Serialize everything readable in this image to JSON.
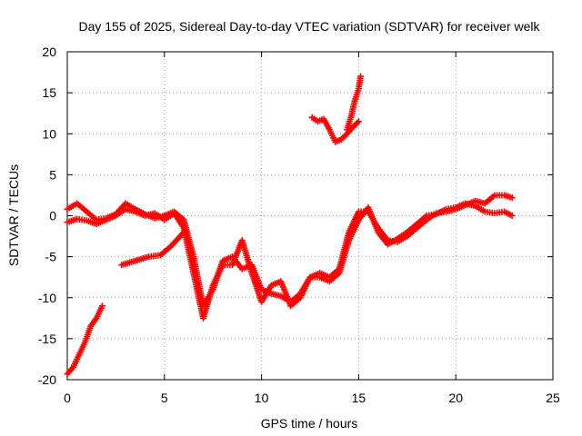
{
  "chart_data": {
    "type": "scatter",
    "title": "Day 155 of 2025, Sidereal Day-to-day VTEC variation (SDTVAR) for receiver welk",
    "xlabel": "GPS time / hours",
    "ylabel": "SDTVAR / TECUs",
    "xlim": [
      0,
      25
    ],
    "ylim": [
      -20,
      20
    ],
    "xticks": [
      "0",
      "5",
      "10",
      "15",
      "20",
      "25"
    ],
    "yticks": [
      "-20",
      "-15",
      "-10",
      "-5",
      "0",
      "5",
      "10",
      "15",
      "20"
    ],
    "grid": true,
    "legend": "none",
    "marker": "plus",
    "color": "#ff0000",
    "series": [
      {
        "x": [
          0.0,
          0.5,
          1.0,
          1.5,
          2.0,
          2.5,
          3.0,
          3.5,
          4.0,
          4.5,
          5.0,
          5.5,
          6.0,
          6.5,
          7.0,
          7.5,
          8.0,
          8.5,
          9.0,
          9.5,
          10.0,
          10.5,
          11.0,
          11.5,
          12.0,
          12.5,
          13.0,
          13.5,
          14.0,
          14.5,
          15.0,
          15.5,
          16.0,
          16.5,
          17.0,
          17.5,
          18.0,
          18.5,
          19.0,
          19.5,
          20.0,
          20.5,
          21.0,
          21.5,
          22.0,
          22.5,
          22.9
        ],
        "y": [
          0.8,
          1.5,
          0.5,
          -0.5,
          -0.3,
          0.2,
          1.5,
          0.8,
          0.2,
          -0.3,
          0.0,
          0.5,
          -0.5,
          -5.0,
          -11.0,
          -9.0,
          -5.5,
          -5.0,
          -6.5,
          -6.0,
          -9.0,
          -9.5,
          -9.8,
          -10.5,
          -9.5,
          -7.5,
          -7.0,
          -7.5,
          -6.5,
          -2.0,
          0.5,
          0.5,
          -1.5,
          -3.0,
          -3.2,
          -2.5,
          -1.5,
          -0.5,
          0.3,
          0.5,
          0.8,
          1.3,
          1.8,
          1.5,
          2.5,
          2.5,
          2.2
        ]
      },
      {
        "x": [
          0.0,
          0.5,
          1.0,
          1.5,
          2.0,
          2.5,
          3.0,
          3.5,
          4.0,
          4.5,
          5.0,
          5.5,
          6.0,
          6.5,
          7.0,
          7.5,
          8.0,
          8.5,
          9.0,
          9.5,
          10.0,
          10.5,
          11.0,
          11.5,
          12.0,
          12.5,
          13.0,
          13.5,
          14.0,
          14.5,
          15.0,
          15.5,
          16.0,
          16.5,
          17.0,
          17.5,
          18.0,
          18.5,
          19.0,
          19.5,
          20.0,
          20.5,
          21.0,
          21.5,
          22.0,
          22.5,
          22.9
        ],
        "y": [
          -0.8,
          -0.4,
          -0.6,
          -1.0,
          -0.5,
          0.0,
          0.8,
          0.5,
          0.0,
          0.3,
          -0.5,
          0.3,
          -1.5,
          -7.0,
          -12.5,
          -8.5,
          -6.0,
          -6.0,
          -3.0,
          -7.0,
          -10.5,
          -8.5,
          -8.0,
          -11.0,
          -10.0,
          -7.5,
          -7.5,
          -8.0,
          -7.0,
          -3.0,
          -0.5,
          1.0,
          -2.0,
          -3.5,
          -2.8,
          -2.0,
          -1.0,
          0.0,
          0.2,
          0.8,
          1.0,
          1.5,
          1.2,
          0.5,
          0.3,
          0.5,
          0.0
        ]
      },
      {
        "x": [
          0.0,
          0.3,
          0.6,
          0.9,
          1.2,
          1.5,
          1.8
        ],
        "y": [
          -19.3,
          -18.5,
          -17.0,
          -15.5,
          -13.5,
          -12.5,
          -11.0
        ]
      },
      {
        "x": [
          2.8,
          3.5,
          4.2,
          4.8,
          5.3,
          5.7,
          6.0
        ],
        "y": [
          -6.0,
          -5.5,
          -5.0,
          -4.8,
          -3.8,
          -2.8,
          -2.0
        ]
      },
      {
        "x": [
          12.6,
          12.9,
          13.2,
          13.5,
          13.8,
          14.1,
          14.4,
          14.7,
          15.0
        ],
        "y": [
          12.0,
          11.5,
          11.8,
          10.5,
          9.0,
          9.3,
          10.0,
          10.8,
          11.5
        ]
      },
      {
        "x": [
          14.4,
          14.6,
          14.8,
          15.0,
          15.1
        ],
        "y": [
          10.5,
          12.0,
          14.0,
          15.5,
          17.0
        ]
      }
    ]
  }
}
